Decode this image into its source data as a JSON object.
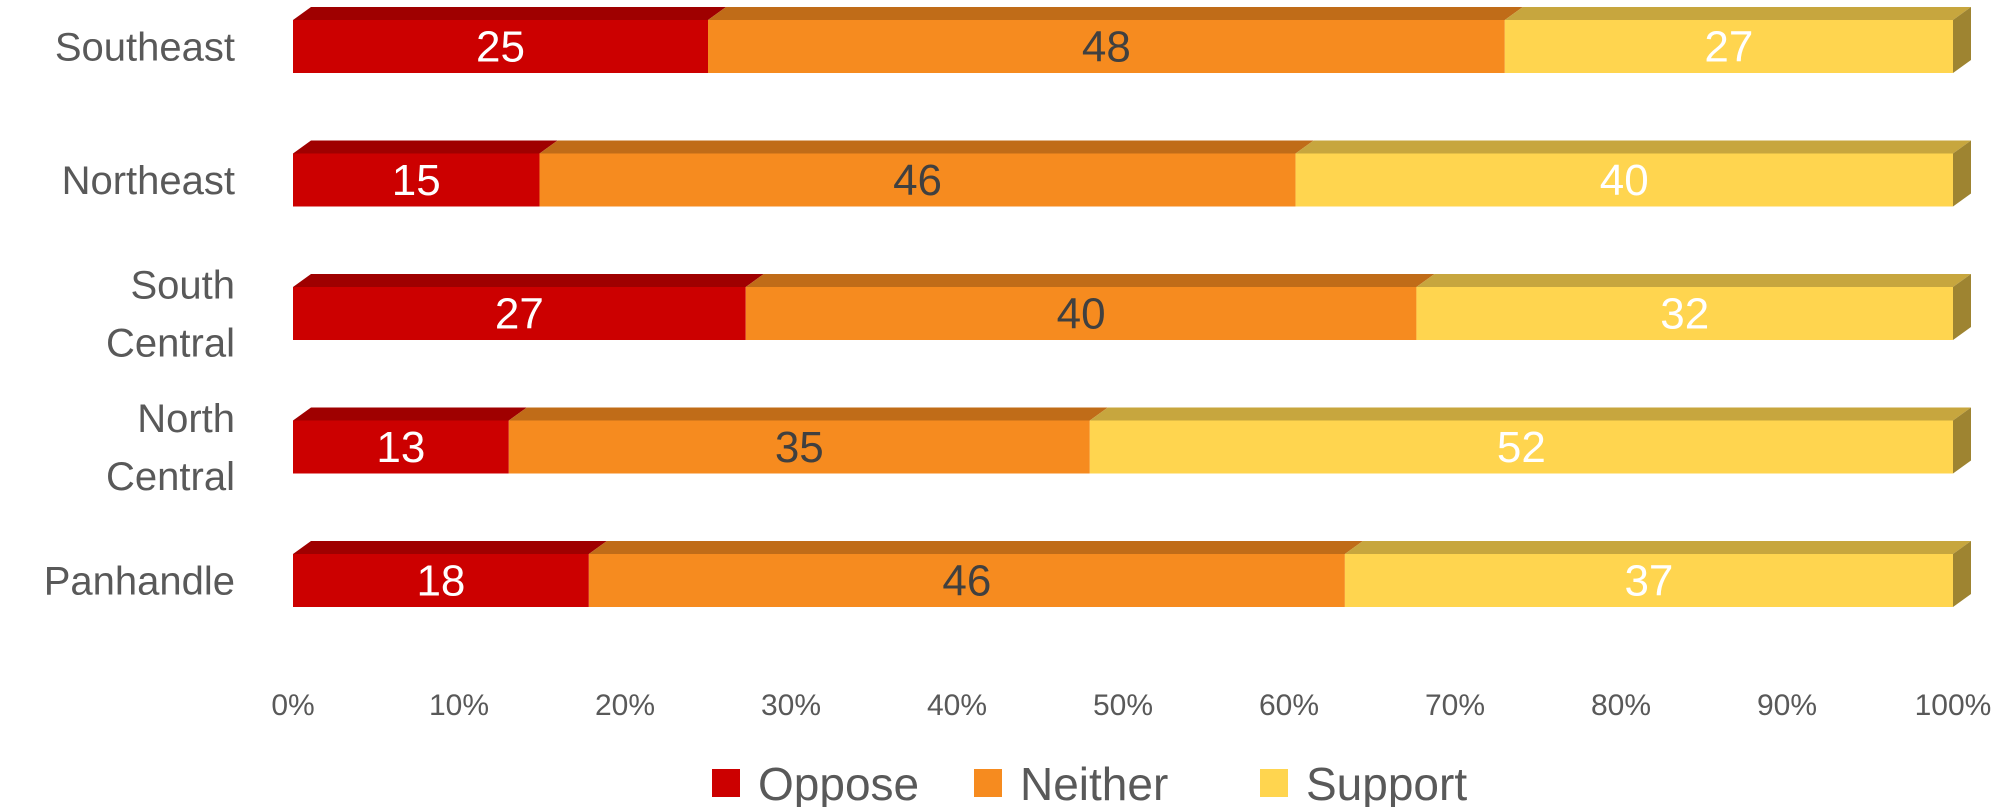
{
  "chart_data": {
    "type": "bar",
    "orientation": "horizontal",
    "stacked": "percent",
    "style": "3d",
    "categories": [
      [
        "Southeast"
      ],
      [
        "Northeast"
      ],
      [
        "South",
        "Central"
      ],
      [
        "North",
        "Central"
      ],
      [
        "Panhandle"
      ]
    ],
    "series": [
      {
        "name": "Oppose",
        "values": [
          25,
          15,
          27,
          13,
          18
        ],
        "color": "#CC0000",
        "label_color": "#FFFFFF"
      },
      {
        "name": "Neither",
        "values": [
          48,
          46,
          40,
          35,
          46
        ],
        "color": "#F68B1F",
        "label_color": "#404040"
      },
      {
        "name": "Support",
        "values": [
          27,
          40,
          32,
          52,
          37
        ],
        "color": "#FFD54F",
        "label_color": "#FFFFFF"
      }
    ],
    "xlim": [
      0,
      100
    ],
    "x_ticks": [
      "0%",
      "10%",
      "20%",
      "30%",
      "40%",
      "50%",
      "60%",
      "70%",
      "80%",
      "90%",
      "100%"
    ],
    "legend_position": "bottom",
    "grid": false
  }
}
